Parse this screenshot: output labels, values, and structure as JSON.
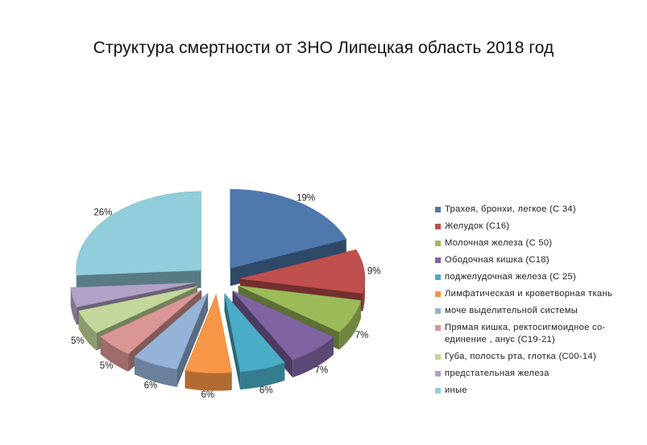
{
  "chart_data": {
    "type": "pie",
    "title": "Структура смертности от ЗНО Липецкая область 2018 год",
    "legend_position": "right",
    "slices": [
      {
        "label": "Трахея, бронхи, легкое (С 34)",
        "value": 19,
        "value_label": "19%",
        "color": "#4f79ad"
      },
      {
        "label": "Желудок (С16)",
        "value": 9,
        "value_label": "9%",
        "color": "#c0504d"
      },
      {
        "label": "Молочная железа (С 50)",
        "value": 7,
        "value_label": "7%",
        "color": "#9bbb59"
      },
      {
        "label": "Ободочная кишка (С18)",
        "value": 7,
        "value_label": "7%",
        "color": "#8064a2"
      },
      {
        "label": "поджелудочная железа (С 25)",
        "value": 6,
        "value_label": "6%",
        "color": "#4aacc6"
      },
      {
        "label": "Лимфатическая и кроветворная ткань",
        "value": 6,
        "value_label": "6%",
        "color": "#f79646"
      },
      {
        "label": "моче выделительной системы",
        "value": 6,
        "value_label": "6%",
        "color": "#95b3d7"
      },
      {
        "label": "Прямая кишка, ректосигмоидное со-\nединение , анус (С19-21)",
        "value": 5,
        "value_label": "5%",
        "color": "#da9694"
      },
      {
        "label": "Губа, полость рта, глотка (С00-14)",
        "value": 5,
        "value_label": "5%",
        "color": "#c3d69b"
      },
      {
        "label": "предстательная железа",
        "value": 4,
        "value_label": "",
        "color": "#b2a1c7"
      },
      {
        "label": "иные",
        "value": 26,
        "value_label": "26%",
        "color": "#92cddc"
      }
    ]
  }
}
